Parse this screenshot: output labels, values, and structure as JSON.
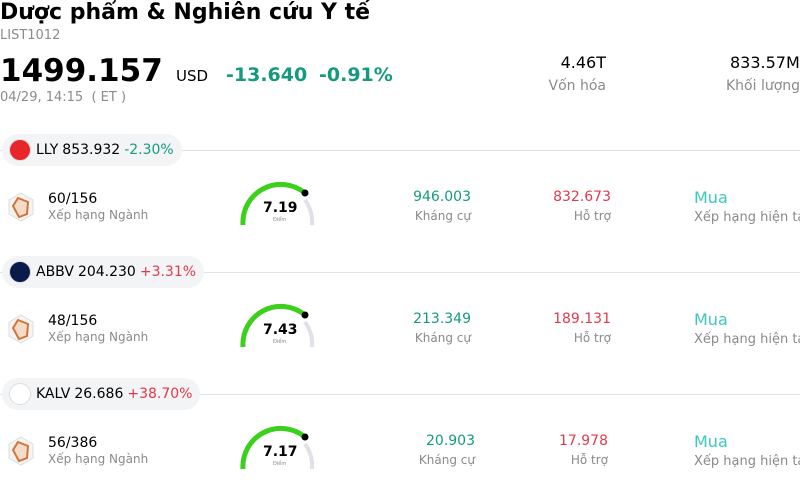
{
  "header": {
    "title": "Dược phẩm & Nghiên cứu Y tế",
    "code": "LIST1012",
    "price": "1499.157",
    "currency": "USD",
    "change": "-13.640",
    "change_percent": "-0.91%",
    "time": "04/29, 14:15  ( ET )",
    "stats": [
      {
        "value": "4.46T",
        "label": "Vốn hóa"
      },
      {
        "value": "833.57M",
        "label": "Khối lượng"
      }
    ]
  },
  "stocks": [
    {
      "ticker": "LLY",
      "price": "853.932",
      "change": "-2.30%",
      "rank": "60/156",
      "rank_label": "Xếp hạng Ngành",
      "score": "7.19",
      "score_label": "Điểm",
      "resistance": "946.003",
      "resistance_label": "Kháng cự",
      "support": "832.673",
      "support_label": "Hỗ trợ",
      "rating": "Mua",
      "rating_label": "Xếp hạng hiện tại",
      "logo_color": "#e8262a"
    },
    {
      "ticker": "ABBV",
      "price": "204.230",
      "change": "+3.31%",
      "rank": "48/156",
      "rank_label": "Xếp hạng Ngành",
      "score": "7.43",
      "score_label": "Điểm",
      "resistance": "213.349",
      "resistance_label": "Kháng cự",
      "support": "189.131",
      "support_label": "Hỗ trợ",
      "rating": "Mua",
      "rating_label": "Xếp hạng hiện tại",
      "logo_color": "#0a1a4a"
    },
    {
      "ticker": "KALV",
      "price": "26.686",
      "change": "+38.70%",
      "rank": "56/386",
      "rank_label": "Xếp hạng Ngành",
      "score": "7.17",
      "score_label": "Điểm",
      "resistance": "20.903",
      "resistance_label": "Kháng cự",
      "support": "17.978",
      "support_label": "Hỗ trợ",
      "rating": "Mua",
      "rating_label": "Xếp hạng hiện tại",
      "logo_color": "#ffffff"
    }
  ]
}
